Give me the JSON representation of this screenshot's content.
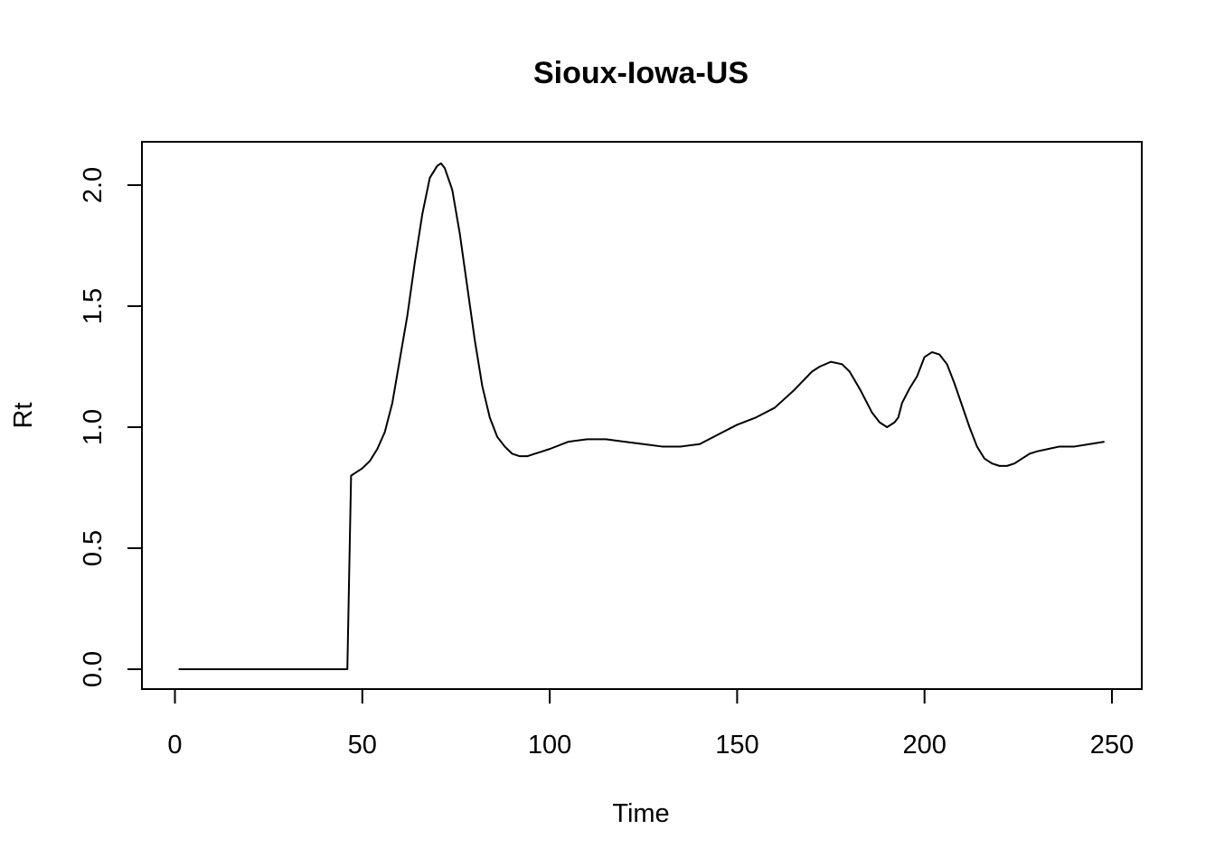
{
  "chart_data": {
    "type": "line",
    "title": "Sioux-Iowa-US",
    "xlabel": "Time",
    "ylabel": "Rt",
    "xlim": [
      1,
      248
    ],
    "ylim": [
      0,
      2.1
    ],
    "x_ticks": [
      0,
      50,
      100,
      150,
      200,
      250
    ],
    "y_ticks": [
      0.0,
      0.5,
      1.0,
      1.5,
      2.0
    ],
    "x_tick_labels": [
      "0",
      "50",
      "100",
      "150",
      "200",
      "250"
    ],
    "y_tick_labels": [
      "0.0",
      "0.5",
      "1.0",
      "1.5",
      "2.0"
    ],
    "grid": false,
    "series": [
      {
        "x": [
          1,
          46,
          47,
          48,
          50,
          52,
          54,
          56,
          58,
          60,
          62,
          64,
          66,
          68,
          70,
          71,
          72,
          74,
          76,
          78,
          80,
          82,
          84,
          86,
          88,
          90,
          92,
          94,
          96,
          98,
          100,
          105,
          110,
          115,
          120,
          125,
          130,
          135,
          140,
          145,
          150,
          155,
          160,
          165,
          170,
          172,
          175,
          178,
          180,
          183,
          186,
          188,
          190,
          192,
          193,
          194,
          196,
          198,
          199,
          200,
          202,
          204,
          206,
          208,
          210,
          212,
          214,
          216,
          218,
          220,
          222,
          224,
          226,
          228,
          230,
          233,
          236,
          240,
          244,
          248
        ],
        "values": [
          0.0,
          0.0,
          0.8,
          0.81,
          0.83,
          0.86,
          0.91,
          0.98,
          1.1,
          1.28,
          1.46,
          1.68,
          1.88,
          2.03,
          2.08,
          2.09,
          2.07,
          1.98,
          1.8,
          1.58,
          1.36,
          1.17,
          1.04,
          0.96,
          0.92,
          0.89,
          0.88,
          0.88,
          0.89,
          0.9,
          0.91,
          0.94,
          0.95,
          0.95,
          0.94,
          0.93,
          0.92,
          0.92,
          0.93,
          0.97,
          1.01,
          1.04,
          1.08,
          1.15,
          1.23,
          1.25,
          1.27,
          1.26,
          1.23,
          1.15,
          1.06,
          1.02,
          1.0,
          1.02,
          1.04,
          1.1,
          1.16,
          1.21,
          1.25,
          1.29,
          1.31,
          1.3,
          1.26,
          1.18,
          1.09,
          1.0,
          0.92,
          0.87,
          0.85,
          0.84,
          0.84,
          0.85,
          0.87,
          0.89,
          0.9,
          0.91,
          0.92,
          0.92,
          0.93,
          0.94
        ]
      }
    ]
  }
}
